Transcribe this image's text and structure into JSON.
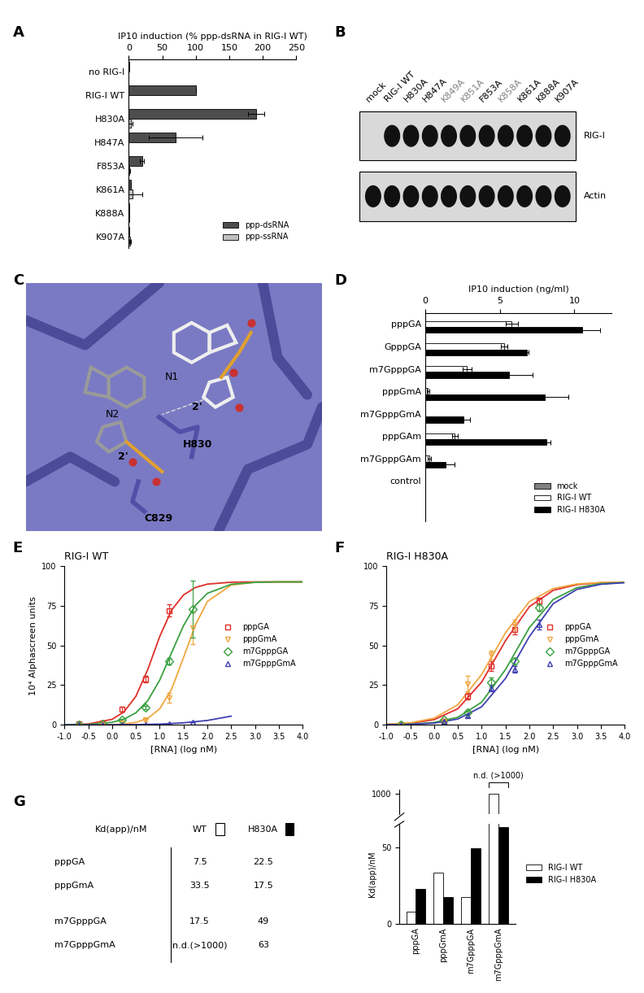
{
  "panel_labels": [
    "A",
    "B",
    "C",
    "D",
    "E",
    "F",
    "G"
  ],
  "chart_data": [
    {
      "type": "bar",
      "orientation": "horizontal",
      "xlabel": "IP10 induction (% ppp-dsRNA in RIG-I WT)",
      "categories": [
        "no RIG-I",
        "RIG-I WT",
        "H830A",
        "H847A",
        "F853A",
        "K861A",
        "K888A",
        "K907A"
      ],
      "series": [
        {
          "name": "ppp-dsRNA",
          "color": "#4d4d4d",
          "values": [
            1,
            100,
            190,
            70,
            20,
            3,
            1,
            1
          ],
          "errors": [
            0,
            0,
            12,
            40,
            3,
            0,
            0,
            0
          ]
        },
        {
          "name": "ppp-ssRNA",
          "color": "#bfbfbf",
          "values": [
            0,
            0,
            3,
            0,
            1,
            5,
            1,
            2
          ],
          "errors": [
            0,
            0,
            3,
            0,
            1,
            15,
            0,
            1
          ]
        }
      ],
      "xlim": [
        0,
        250
      ],
      "xticks": [
        0,
        50,
        100,
        150,
        200,
        250
      ],
      "legend": "lower right"
    },
    {
      "type": "bar",
      "orientation": "horizontal",
      "xlabel": "IP10 induction (ng/ml)",
      "categories": [
        "pppGA",
        "GpppGA",
        "m7GpppGA",
        "pppGmA",
        "m7GpppGmA",
        "pppGAm",
        "m7GpppGAm",
        "control"
      ],
      "series": [
        {
          "name": "mock",
          "color": "#808080",
          "values": [
            0,
            0,
            0,
            0,
            0,
            0,
            0,
            0
          ],
          "errors": [
            0,
            0,
            0,
            0,
            0,
            0,
            0,
            0
          ]
        },
        {
          "name": "RIG-I WT",
          "color": "#ffffff",
          "values": [
            5.8,
            5.3,
            2.8,
            0.2,
            0,
            2.0,
            0.3,
            0
          ],
          "errors": [
            0.4,
            0.2,
            0.3,
            0.1,
            0,
            0.2,
            0.1,
            0
          ]
        },
        {
          "name": "RIG-I H830A",
          "color": "#000000",
          "values": [
            10.5,
            6.8,
            5.6,
            8.0,
            2.6,
            8.1,
            1.4,
            0
          ],
          "errors": [
            1.2,
            0.1,
            1.6,
            1.6,
            0.4,
            0.3,
            0.6,
            0
          ]
        }
      ],
      "xlim": [
        0,
        12.5
      ],
      "xticks": [
        0,
        5,
        10
      ],
      "legend": "lower right"
    },
    {
      "type": "line",
      "title": "RIG-I WT",
      "xlabel": "[RNA] (log nM)",
      "ylabel": "10⁴ Alphascreen units",
      "series": [
        {
          "name": "pppGA",
          "color": "#e0302a",
          "marker": "square",
          "x": [
            -0.7,
            -0.2,
            0.2,
            0.7,
            1.2
          ],
          "values": [
            0.5,
            1,
            10,
            29,
            72
          ],
          "errors": [
            0.5,
            0.5,
            1.5,
            2,
            4
          ],
          "fit": {
            "x": [
              -1,
              -0.5,
              0,
              0.25,
              0.5,
              0.75,
              1,
              1.25,
              1.5,
              1.75,
              2,
              2.5,
              3,
              3.5,
              4
            ],
            "values": [
              0.1,
              0.6,
              3.5,
              8.2,
              18,
              34.9,
              55.6,
              72.3,
              81.8,
              86.5,
              88.6,
              89.8,
              90,
              90,
              90
            ]
          }
        },
        {
          "name": "pppGmA",
          "color": "#f0a640",
          "marker": "triangle_down",
          "x": [
            -0.7,
            -0.2,
            0.2,
            0.7,
            1.2,
            1.7
          ],
          "values": [
            0,
            0,
            1,
            3,
            17,
            61
          ],
          "errors": [
            0,
            0,
            0.5,
            1,
            3,
            10
          ],
          "fit": {
            "x": [
              -1,
              -0.5,
              0,
              0.25,
              0.5,
              0.75,
              1,
              1.25,
              1.5,
              1.75,
              2,
              2.5,
              3,
              3.5,
              4
            ],
            "values": [
              0,
              0,
              0.2,
              0.6,
              1.6,
              4.1,
              10.1,
              22.5,
              42.4,
              62.9,
              77.7,
              88,
              89.8,
              90,
              90
            ]
          }
        },
        {
          "name": "m7GpppGA",
          "color": "#3aa040",
          "marker": "diamond",
          "x": [
            -0.7,
            -0.2,
            0.2,
            0.7,
            1.2,
            1.7
          ],
          "values": [
            0,
            0.5,
            3,
            11,
            40,
            73
          ],
          "errors": [
            0,
            0,
            0.5,
            1,
            2,
            18
          ],
          "fit": {
            "x": [
              -1,
              -0.5,
              0,
              0.25,
              0.5,
              0.75,
              1,
              1.25,
              1.5,
              1.75,
              2,
              2.5,
              3,
              3.5,
              4
            ],
            "values": [
              0.1,
              0.3,
              1.6,
              3.6,
              7.6,
              15.3,
              28.2,
              45.5,
              62.5,
              75.3,
              82.8,
              88.5,
              89.7,
              90,
              90
            ]
          }
        },
        {
          "name": "m7GpppGmA",
          "color": "#4040b0",
          "marker": "triangle_up",
          "x": [
            -0.7,
            -0.2,
            0.2,
            0.7,
            1.2,
            1.7
          ],
          "values": [
            0,
            0,
            0,
            0,
            0.5,
            1.5
          ],
          "errors": [
            0,
            0,
            0,
            0,
            0,
            0
          ],
          "fit": {
            "x": [
              -1,
              -0.5,
              0,
              0.5,
              1,
              1.5,
              2,
              2.5
            ],
            "values": [
              0,
              0,
              0.1,
              0.2,
              0.5,
              1.3,
              2.8,
              5.5
            ]
          }
        }
      ],
      "xlim": [
        -1,
        4
      ],
      "xticks": [
        {
          "value": -1,
          "label": "-1.0"
        },
        -0.5,
        {
          "value": 0,
          "label": "0.0"
        },
        0.5,
        {
          "value": 1,
          "label": "1.0"
        },
        1.5,
        {
          "value": 2,
          "label": "2.0"
        },
        2.5,
        {
          "value": 3,
          "label": "3.0"
        },
        3.5,
        {
          "value": 4,
          "label": "4.0"
        }
      ],
      "ylim": [
        0,
        100
      ],
      "yticks": [
        0,
        25,
        50,
        75,
        100
      ],
      "legend": "center right"
    },
    {
      "type": "line",
      "title": "RIG-I H830A",
      "xlabel": "[RNA] (log nM)",
      "series": [
        {
          "name": "pppGA",
          "color": "#e0302a",
          "marker": "square",
          "x": [
            -0.7,
            0.2,
            0.7,
            1.2,
            1.7,
            2.2
          ],
          "values": [
            0,
            2,
            18,
            37,
            60,
            78
          ],
          "errors": [
            0,
            1,
            2,
            3,
            3,
            2
          ],
          "fit": {
            "x": [
              -1,
              -0.5,
              0,
              0.5,
              1,
              1.5,
              2,
              2.5,
              3,
              3.5,
              4
            ],
            "values": [
              0.3,
              1.0,
              3.3,
              10.2,
              27,
              53,
              74.4,
              84.7,
              88.3,
              89.5,
              89.8
            ]
          }
        },
        {
          "name": "pppGmA",
          "color": "#f0a640",
          "marker": "triangle_down",
          "x": [
            -0.7,
            0.2,
            0.7,
            1.2,
            1.7
          ],
          "values": [
            0,
            2,
            26,
            44,
            63
          ],
          "errors": [
            0,
            1,
            5,
            3,
            3
          ],
          "fit": {
            "x": [
              -1,
              -0.5,
              0,
              0.5,
              1,
              1.5,
              2,
              2.5,
              3,
              3.5,
              4
            ],
            "values": [
              0.4,
              1.3,
              4.2,
              12.7,
              31.8,
              58,
              77.6,
              85.8,
              88.7,
              89.6,
              89.9
            ]
          }
        },
        {
          "name": "m7GpppGA",
          "color": "#3aa040",
          "marker": "diamond",
          "x": [
            -0.7,
            0.2,
            0.7,
            1.2,
            1.7,
            2.2
          ],
          "values": [
            0,
            3,
            8,
            27,
            40,
            74
          ],
          "errors": [
            0,
            1,
            1,
            3,
            2,
            2
          ],
          "fit": {
            "x": [
              -1,
              -0.5,
              0,
              0.5,
              1,
              1.5,
              2,
              2.5,
              3,
              3.5,
              4
            ],
            "values": [
              0.1,
              0.45,
              1.5,
              4.8,
              14.3,
              34.9,
              61.2,
              78.9,
              86.4,
              88.9,
              89.6
            ]
          }
        },
        {
          "name": "m7GpppGmA",
          "color": "#4040b0",
          "marker": "triangle_up",
          "x": [
            -0.7,
            0.2,
            0.7,
            1.2,
            1.7,
            2.2
          ],
          "values": [
            0,
            2,
            6,
            23,
            35,
            63
          ],
          "errors": [
            0,
            1,
            1,
            2,
            2,
            3
          ],
          "fit": {
            "x": [
              -1,
              -0.5,
              0,
              0.5,
              1,
              1.5,
              2,
              2.5,
              3,
              3.5,
              4
            ],
            "values": [
              0.1,
              0.34,
              1.1,
              3.7,
              11.4,
              29.3,
              55.6,
              76.3,
              85.3,
              88.5,
              89.5
            ]
          }
        }
      ],
      "xlim": [
        -1,
        4
      ],
      "xticks": [
        {
          "value": -1,
          "label": "-1.0"
        },
        -0.5,
        {
          "value": 0,
          "label": "0.0"
        },
        0.5,
        {
          "value": 1,
          "label": "1.0"
        },
        1.5,
        {
          "value": 2,
          "label": "2.0"
        },
        2.5,
        {
          "value": 3,
          "label": "3.0"
        },
        3.5,
        {
          "value": 4,
          "label": "4.0"
        }
      ],
      "ylim": [
        0,
        100
      ],
      "yticks": [
        0,
        25,
        50,
        75,
        100
      ],
      "legend": "center right"
    },
    {
      "type": "bar",
      "ylabel": "Kd(app)/nM",
      "categories": [
        "pppGA",
        "pppGmA",
        "m7GpppGA",
        "m7GpppGmA"
      ],
      "series": [
        {
          "name": "RIG-I WT",
          "color": "#ffffff",
          "values": [
            7.5,
            33.5,
            17.5,
            1000
          ]
        },
        {
          "name": "RIG-I H830A",
          "color": "#000000",
          "values": [
            22.5,
            17.5,
            49,
            63
          ]
        }
      ],
      "ylim": [
        0,
        1010
      ],
      "axis_break": [
        65,
        950
      ],
      "yticks": [
        0,
        50,
        1000
      ],
      "legend": "right",
      "annotations": [
        {
          "text": "n.d. (>1000)",
          "category": "m7GpppGmA"
        }
      ]
    }
  ],
  "blot": {
    "lanes": [
      {
        "label": "mock",
        "color": "#000000"
      },
      {
        "label": "RIG-I WT",
        "color": "#000000"
      },
      {
        "label": "H830A",
        "color": "#000000"
      },
      {
        "label": "H847A",
        "color": "#000000"
      },
      {
        "label": "K849A",
        "color": "#808080"
      },
      {
        "label": "K851A",
        "color": "#808080"
      },
      {
        "label": "F853A",
        "color": "#000000"
      },
      {
        "label": "K858A",
        "color": "#808080"
      },
      {
        "label": "K861A",
        "color": "#000000"
      },
      {
        "label": "K888A",
        "color": "#000000"
      },
      {
        "label": "K907A",
        "color": "#000000"
      }
    ],
    "rows": [
      {
        "label": "RIG-I",
        "bands": [
          false,
          true,
          true,
          true,
          true,
          true,
          true,
          true,
          true,
          true,
          true
        ]
      },
      {
        "label": "Actin",
        "bands": [
          true,
          true,
          true,
          true,
          true,
          true,
          true,
          true,
          true,
          true,
          true
        ]
      }
    ]
  },
  "structure": {
    "labels": [
      "N1",
      "N2",
      "2'",
      "2'",
      "H830",
      "C829"
    ]
  },
  "table": {
    "header": [
      "Kd(app)/nM",
      "WT",
      "H830A"
    ],
    "rows": [
      [
        "pppGA",
        "7.5",
        "22.5"
      ],
      [
        "pppGmA",
        "33.5",
        "17.5"
      ],
      [
        "m7GpppGA",
        "17.5",
        "49"
      ],
      [
        "m7GpppGmA",
        "n.d.(>1000)",
        "63"
      ]
    ]
  }
}
